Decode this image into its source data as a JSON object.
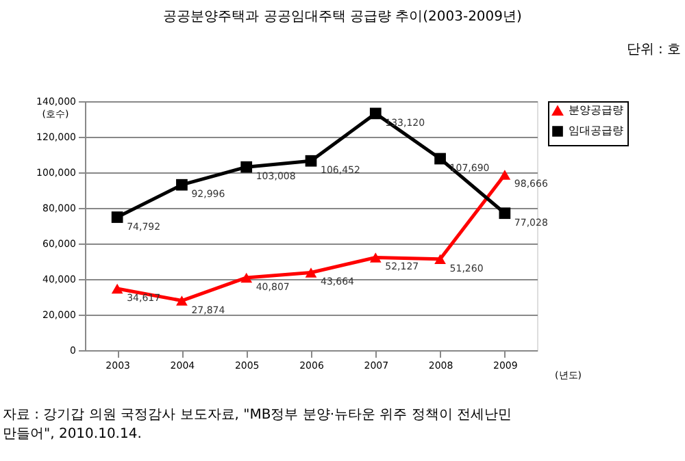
{
  "chart_data": {
    "type": "line",
    "title": "공공분양주택과 공공임대주택 공급량 추이(2003-2009년)",
    "xlabel": "(년도)",
    "ylabel": "(호수)",
    "categories": [
      "2003",
      "2004",
      "2005",
      "2006",
      "2007",
      "2008",
      "2009"
    ],
    "series": [
      {
        "name": "분양공급량",
        "color": "#ff0000",
        "marker": "triangle",
        "values": [
          34617,
          27874,
          40807,
          43664,
          52127,
          51260,
          98666
        ],
        "value_labels": [
          "34,617",
          "27,874",
          "40,807",
          "43,664",
          "52,127",
          "51,260",
          "98,666"
        ]
      },
      {
        "name": "임대공급량",
        "color": "#000000",
        "marker": "square",
        "values": [
          74792,
          92996,
          103008,
          106452,
          133120,
          107690,
          77028
        ],
        "value_labels": [
          "74,792",
          "92,996",
          "103,008",
          "106,452",
          "133,120",
          "107,690",
          "77,028"
        ]
      }
    ],
    "ylim": [
      0,
      140000
    ],
    "yticks": [
      0,
      {
        "value": 20000,
        "label": "20,000"
      },
      {
        "value": 40000,
        "label": "40,000"
      },
      {
        "value": 60000,
        "label": "60,000"
      },
      {
        "value": 80000,
        "label": "80,000"
      },
      {
        "value": 100000,
        "label": "100,000"
      },
      {
        "value": 120000,
        "label": "120,000"
      },
      {
        "value": 140000,
        "label": "140,000"
      }
    ],
    "grid": "y",
    "legend": "right",
    "annotations": [
      "단위 : 호",
      "자료 : 강기갑 의원 국정감사 보도자료, \"MB정부 분양·뉴타운 위주 정책이 전세난민 만들어\", 2010.10.14."
    ]
  }
}
